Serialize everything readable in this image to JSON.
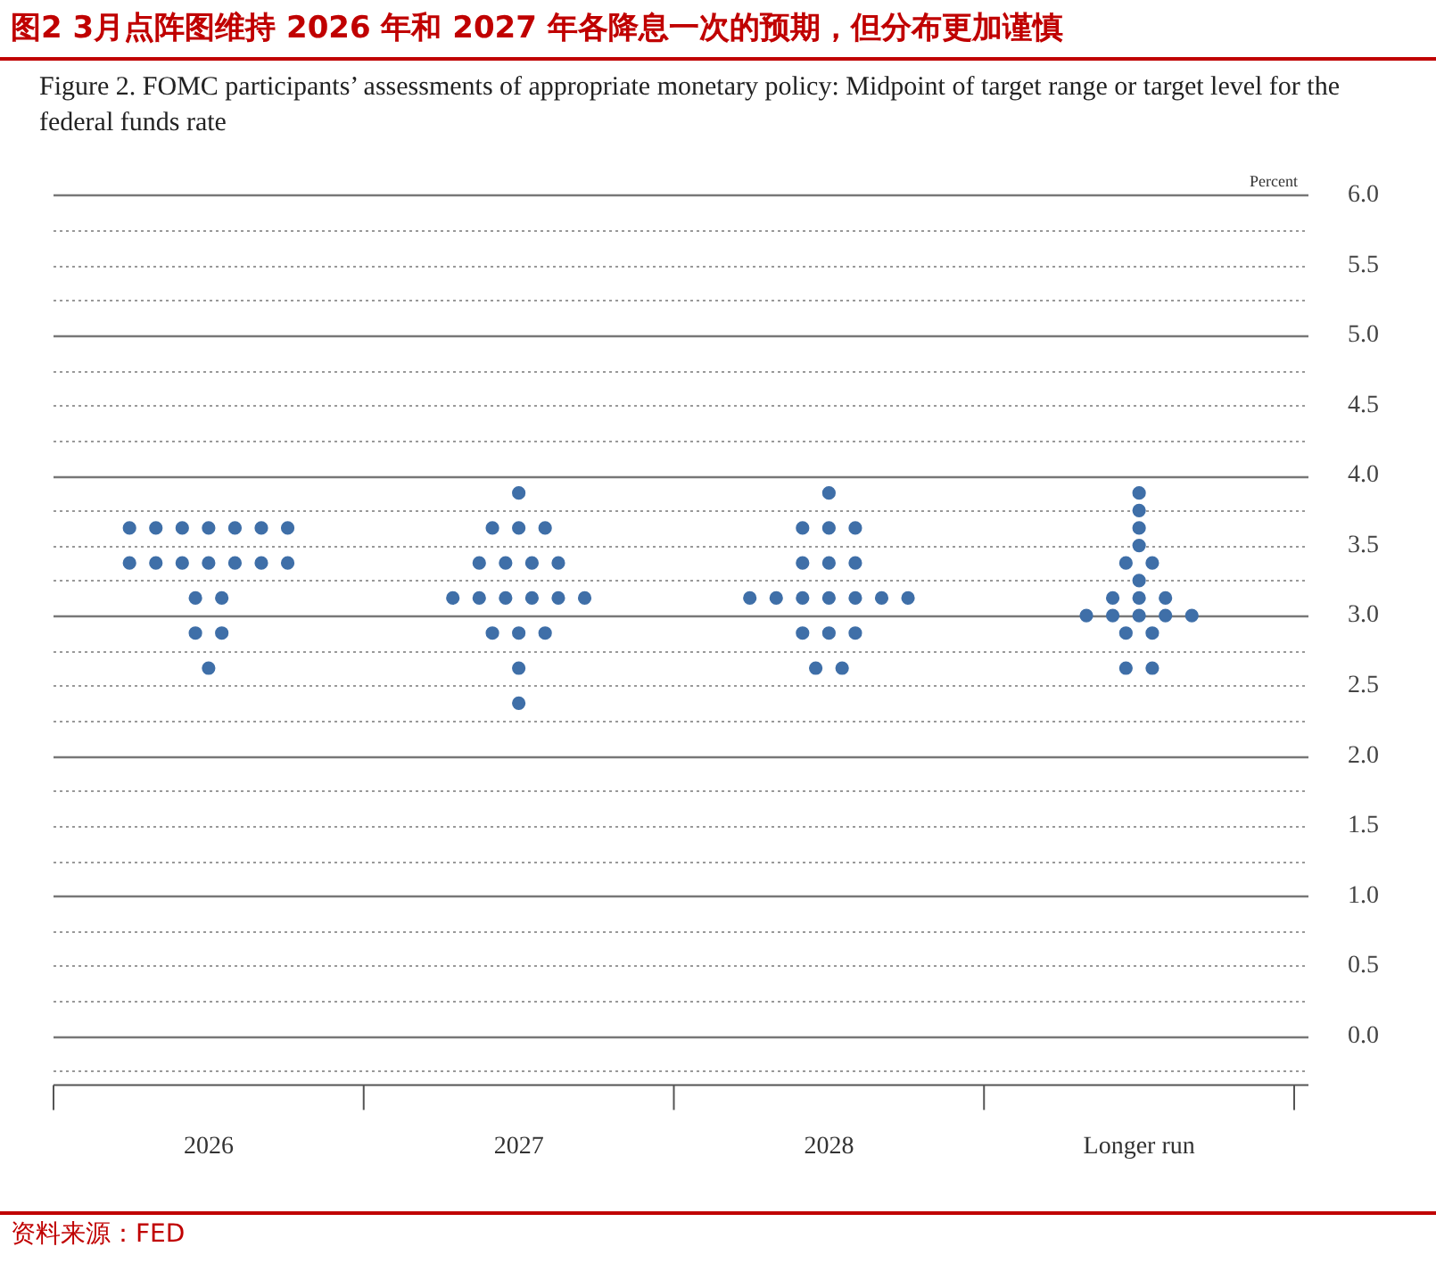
{
  "chart_data": {
    "type": "scatter",
    "title": "图2 3月点阵图维持 2026 年和 2027 年各降息一次的预期，但分布更加谨慎",
    "subtitle": "Figure 2. FOMC participants’ assessments of appropriate monetary policy: Midpoint of target range or target level for the federal funds rate",
    "ylabel": "Percent",
    "annotations": [
      "资料来源：FED"
    ],
    "categories": [
      "2026",
      "2027",
      "2028",
      "Longer run"
    ],
    "ylim": [
      -0.35,
      6.0
    ],
    "yticks": [
      {
        "value": -0.25,
        "label": null
      },
      {
        "value": 0,
        "label": "0.0"
      },
      {
        "value": 0.25,
        "label": null
      },
      {
        "value": 0.5,
        "label": "0.5"
      },
      {
        "value": 0.75,
        "label": null
      },
      {
        "value": 1,
        "label": "1.0"
      },
      {
        "value": 1.25,
        "label": null
      },
      {
        "value": 1.5,
        "label": "1.5"
      },
      {
        "value": 1.75,
        "label": null
      },
      {
        "value": 2,
        "label": "2.0"
      },
      {
        "value": 2.25,
        "label": null
      },
      {
        "value": 2.5,
        "label": "2.5"
      },
      {
        "value": 2.75,
        "label": null
      },
      {
        "value": 3,
        "label": "3.0"
      },
      {
        "value": 3.25,
        "label": null
      },
      {
        "value": 3.5,
        "label": "3.5"
      },
      {
        "value": 3.75,
        "label": null
      },
      {
        "value": 4,
        "label": "4.0"
      },
      {
        "value": 4.25,
        "label": null
      },
      {
        "value": 4.5,
        "label": "4.5"
      },
      {
        "value": 4.75,
        "label": null
      },
      {
        "value": 5,
        "label": "5.0"
      },
      {
        "value": 5.25,
        "label": null
      },
      {
        "value": 5.5,
        "label": "5.5"
      },
      {
        "value": 5.75,
        "label": null
      },
      {
        "value": 6,
        "label": "6.0"
      }
    ],
    "grid": "y",
    "marker": "circle",
    "legend": false,
    "series": [
      {
        "color": "#3f6fa8",
        "values": [
          3.625,
          3.875,
          3.875,
          3.875
        ]
      },
      {
        "color": "#3f6fa8",
        "values": [
          3.625,
          3.625,
          3.625,
          3.75
        ]
      },
      {
        "color": "#3f6fa8",
        "values": [
          3.625,
          3.625,
          3.625,
          3.625
        ]
      },
      {
        "color": "#3f6fa8",
        "values": [
          3.625,
          3.625,
          3.625,
          3.5
        ]
      },
      {
        "color": "#3f6fa8",
        "values": [
          3.625,
          3.375,
          3.375,
          3.375
        ]
      },
      {
        "color": "#3f6fa8",
        "values": [
          3.625,
          3.375,
          3.375,
          3.375
        ]
      },
      {
        "color": "#3f6fa8",
        "values": [
          3.625,
          3.375,
          3.375,
          3.25
        ]
      },
      {
        "color": "#3f6fa8",
        "values": [
          3.375,
          3.375,
          3.125,
          3.125
        ]
      },
      {
        "color": "#3f6fa8",
        "values": [
          3.375,
          3.125,
          3.125,
          3.125
        ]
      },
      {
        "color": "#3f6fa8",
        "values": [
          3.375,
          3.125,
          3.125,
          3.125
        ]
      },
      {
        "color": "#3f6fa8",
        "values": [
          3.375,
          3.125,
          3.125,
          3.0
        ]
      },
      {
        "color": "#3f6fa8",
        "values": [
          3.375,
          3.125,
          3.125,
          3.0
        ]
      },
      {
        "color": "#3f6fa8",
        "values": [
          3.375,
          3.125,
          3.125,
          3.0
        ]
      },
      {
        "color": "#3f6fa8",
        "values": [
          3.375,
          3.125,
          3.125,
          3.0
        ]
      },
      {
        "color": "#3f6fa8",
        "values": [
          3.125,
          2.875,
          2.875,
          3.0
        ]
      },
      {
        "color": "#3f6fa8",
        "values": [
          3.125,
          2.875,
          2.875,
          2.875
        ]
      },
      {
        "color": "#3f6fa8",
        "values": [
          2.875,
          2.875,
          2.875,
          2.875
        ]
      },
      {
        "color": "#3f6fa8",
        "values": [
          2.875,
          2.625,
          2.625,
          2.625
        ]
      },
      {
        "color": "#3f6fa8",
        "values": [
          2.625,
          2.375,
          2.625,
          2.625
        ]
      }
    ]
  }
}
